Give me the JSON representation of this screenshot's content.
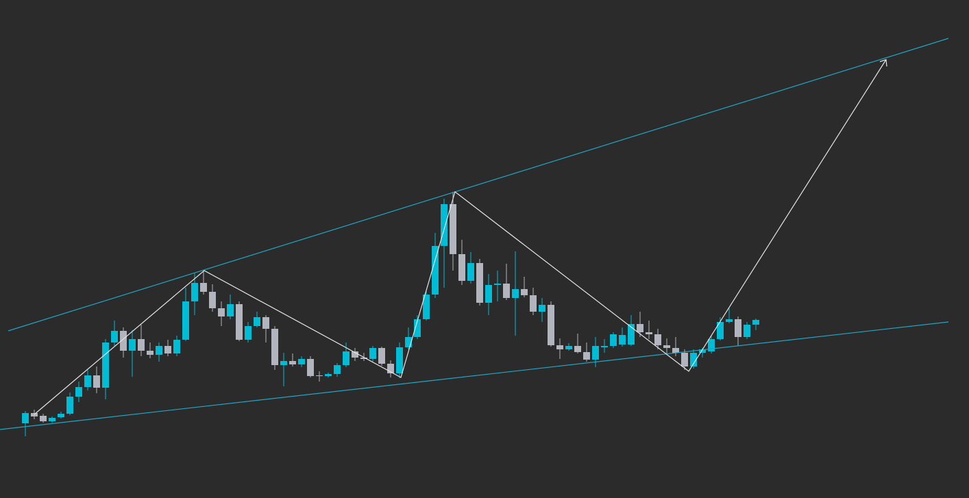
{
  "chart_data": {
    "type": "candlestick",
    "up_color": "#00bcd4",
    "down_color": "#b2b5be",
    "background": "#2b2b2b",
    "ylim": [
      0,
      727
    ],
    "open": [
      109,
      124,
      120,
      112,
      118,
      123,
      148,
      162,
      179,
      161,
      227,
      244,
      215,
      232,
      215,
      209,
      222,
      211,
      231,
      287,
      314,
      301,
      277,
      265,
      283,
      231,
      251,
      264,
      247,
      194,
      200,
      195,
      203,
      179,
      178,
      181,
      194,
      214,
      205,
      203,
      219,
      196,
      182,
      220,
      235,
      261,
      297,
      368,
      429,
      356,
      317,
      343,
      285,
      311,
      313,
      292,
      305,
      296,
      272,
      282,
      223,
      217,
      222,
      213,
      202,
      220,
      222,
      224,
      224,
      254,
      242,
      239,
      223,
      219,
      212,
      192,
      212,
      214,
      232,
      257,
      261,
      235,
      253
    ],
    "high": [
      127,
      129,
      123,
      119,
      126,
      154,
      170,
      187,
      192,
      232,
      259,
      249,
      245,
      253,
      227,
      227,
      231,
      237,
      307,
      329,
      331,
      312,
      287,
      297,
      287,
      257,
      272,
      267,
      251,
      212,
      211,
      207,
      207,
      185,
      183,
      197,
      227,
      219,
      212,
      222,
      221,
      201,
      227,
      249,
      267,
      302,
      387,
      437,
      447,
      377,
      359,
      349,
      327,
      332,
      342,
      360,
      323,
      307,
      292,
      287,
      233,
      226,
      240,
      227,
      235,
      232,
      242,
      249,
      267,
      272,
      259,
      247,
      233,
      235,
      217,
      217,
      219,
      237,
      264,
      277,
      265,
      257,
      262
    ],
    "low": [
      90,
      115,
      110,
      110,
      116,
      121,
      140,
      157,
      153,
      144,
      222,
      205,
      177,
      207,
      204,
      199,
      207,
      207,
      229,
      267,
      297,
      272,
      251,
      261,
      229,
      227,
      249,
      227,
      187,
      163,
      192,
      191,
      176,
      170,
      176,
      177,
      191,
      200,
      200,
      199,
      193,
      176,
      175,
      217,
      232,
      259,
      292,
      307,
      332,
      311,
      313,
      281,
      267,
      287,
      289,
      237,
      293,
      267,
      257,
      221,
      203,
      215,
      211,
      199,
      191,
      212,
      219,
      221,
      222,
      235,
      232,
      217,
      211,
      207,
      187,
      189,
      205,
      211,
      230,
      255,
      222,
      232,
      245
    ],
    "close": [
      124,
      119,
      112,
      117,
      123,
      148,
      162,
      179,
      161,
      227,
      244,
      215,
      232,
      215,
      209,
      222,
      211,
      231,
      287,
      314,
      301,
      277,
      265,
      283,
      231,
      251,
      264,
      247,
      194,
      200,
      195,
      203,
      178,
      178,
      181,
      194,
      214,
      205,
      203,
      219,
      196,
      182,
      220,
      235,
      261,
      297,
      368,
      429,
      356,
      317,
      343,
      285,
      311,
      313,
      292,
      305,
      296,
      272,
      282,
      223,
      217,
      222,
      213,
      202,
      222,
      222,
      239,
      238,
      254,
      242,
      239,
      223,
      219,
      212,
      192,
      212,
      217,
      232,
      257,
      261,
      235,
      253,
      260
    ]
  }
}
